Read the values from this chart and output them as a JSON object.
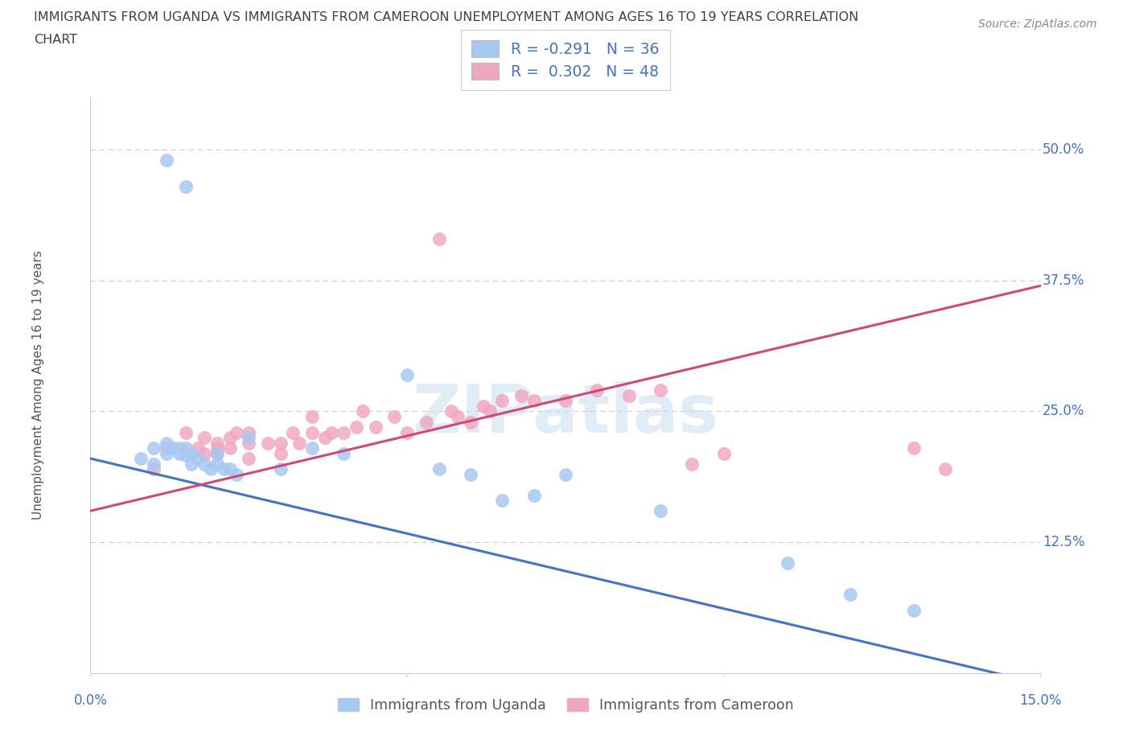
{
  "title_line1": "IMMIGRANTS FROM UGANDA VS IMMIGRANTS FROM CAMEROON UNEMPLOYMENT AMONG AGES 16 TO 19 YEARS CORRELATION",
  "title_line2": "CHART",
  "source": "Source: ZipAtlas.com",
  "ylabel": "Unemployment Among Ages 16 to 19 years",
  "xlim": [
    0.0,
    0.15
  ],
  "ylim": [
    0.0,
    0.55
  ],
  "ytick_vals": [
    0.0,
    0.125,
    0.25,
    0.375,
    0.5
  ],
  "ytick_labels": [
    "",
    "12.5%",
    "25.0%",
    "37.5%",
    "50.0%"
  ],
  "xtick_vals": [
    0.0,
    0.05,
    0.1,
    0.15
  ],
  "xtick_labels": [
    "0.0%",
    "",
    "",
    "15.0%"
  ],
  "watermark": "ZIPatlas",
  "legend_uganda": "R = -0.291   N = 36",
  "legend_cameroon": "R =  0.302   N = 48",
  "uganda_color": "#a8c8f0",
  "cameroon_color": "#f0a8c0",
  "uganda_line_color": "#4472c4",
  "cameroon_line_color": "#d04878",
  "grid_color": "#cccccc",
  "title_color": "#404040",
  "axis_label_color": "#4472c4",
  "bottom_label_color": "#555555",
  "uganda_line_x0": 0.0,
  "uganda_line_y0": 0.205,
  "uganda_line_x1": 0.15,
  "uganda_line_y1": -0.01,
  "cameroon_line_x0": 0.0,
  "cameroon_line_y0": 0.155,
  "cameroon_line_x1": 0.15,
  "cameroon_line_y1": 0.37,
  "uganda_x": [
    0.012,
    0.015,
    0.008,
    0.01,
    0.01,
    0.012,
    0.012,
    0.013,
    0.014,
    0.014,
    0.015,
    0.015,
    0.016,
    0.016,
    0.017,
    0.018,
    0.019,
    0.02,
    0.02,
    0.021,
    0.022,
    0.023,
    0.025,
    0.03,
    0.035,
    0.04,
    0.05,
    0.055,
    0.06,
    0.065,
    0.07,
    0.075,
    0.09,
    0.11,
    0.12,
    0.13
  ],
  "uganda_y": [
    0.49,
    0.465,
    0.205,
    0.2,
    0.215,
    0.21,
    0.22,
    0.215,
    0.215,
    0.21,
    0.208,
    0.215,
    0.2,
    0.21,
    0.205,
    0.2,
    0.195,
    0.2,
    0.21,
    0.195,
    0.195,
    0.19,
    0.225,
    0.195,
    0.215,
    0.21,
    0.285,
    0.195,
    0.19,
    0.165,
    0.17,
    0.19,
    0.155,
    0.105,
    0.075,
    0.06
  ],
  "cameroon_x": [
    0.01,
    0.012,
    0.015,
    0.017,
    0.018,
    0.018,
    0.02,
    0.02,
    0.02,
    0.022,
    0.022,
    0.023,
    0.025,
    0.025,
    0.025,
    0.028,
    0.03,
    0.03,
    0.032,
    0.033,
    0.035,
    0.035,
    0.037,
    0.038,
    0.04,
    0.042,
    0.043,
    0.045,
    0.048,
    0.05,
    0.053,
    0.055,
    0.057,
    0.058,
    0.06,
    0.062,
    0.063,
    0.065,
    0.068,
    0.07,
    0.075,
    0.08,
    0.085,
    0.09,
    0.095,
    0.1,
    0.13,
    0.135
  ],
  "cameroon_y": [
    0.195,
    0.215,
    0.23,
    0.215,
    0.225,
    0.21,
    0.21,
    0.22,
    0.215,
    0.225,
    0.215,
    0.23,
    0.205,
    0.22,
    0.23,
    0.22,
    0.21,
    0.22,
    0.23,
    0.22,
    0.245,
    0.23,
    0.225,
    0.23,
    0.23,
    0.235,
    0.25,
    0.235,
    0.245,
    0.23,
    0.24,
    0.415,
    0.25,
    0.245,
    0.24,
    0.255,
    0.25,
    0.26,
    0.265,
    0.26,
    0.26,
    0.27,
    0.265,
    0.27,
    0.2,
    0.21,
    0.215,
    0.195
  ]
}
